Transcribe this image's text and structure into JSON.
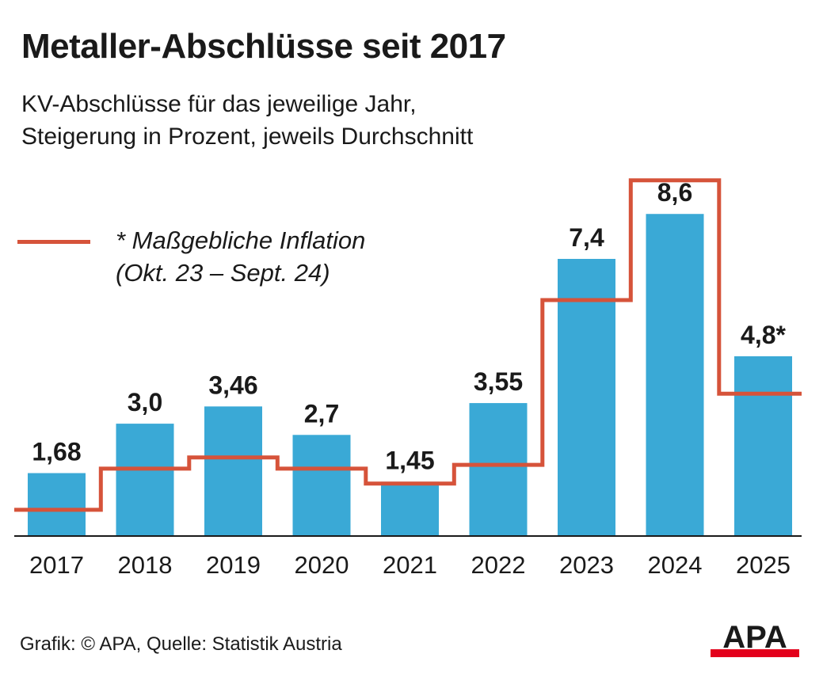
{
  "header": {
    "title": "Metaller-Abschlüsse seit 2017",
    "subtitle_line1": "KV-Abschlüsse für das jeweilige Jahr,",
    "subtitle_line2": "Steigerung in Prozent, jeweils Durchschnitt"
  },
  "legend": {
    "line1": "* Maßgebliche Inflation",
    "line2": "(Okt. 23 – Sept. 24)"
  },
  "footer": {
    "source": "Grafik: © APA, Quelle: Statistik Austria",
    "logo_text": "APA"
  },
  "colors": {
    "bar": "#3aa9d6",
    "inflation_line": "#d6533a",
    "logo_red": "#e3001b"
  },
  "chart_data": {
    "type": "bar",
    "title": "Metaller-Abschlüsse seit 2017",
    "subtitle": "KV-Abschlüsse für das jeweilige Jahr, Steigerung in Prozent, jeweils Durchschnitt",
    "categories": [
      "2017",
      "2018",
      "2019",
      "2020",
      "2021",
      "2022",
      "2023",
      "2024",
      "2025"
    ],
    "series": [
      {
        "values": [
          1.68,
          3.0,
          3.46,
          2.7,
          1.45,
          3.55,
          7.4,
          8.6,
          4.8
        ],
        "labels": [
          "1,68",
          "3,0",
          "3,46",
          "2,7",
          "1,45",
          "3,55",
          "7,4",
          "8,6",
          "4,8*"
        ]
      },
      {
        "name": "* Maßgebliche Inflation",
        "type": "step-line",
        "values": [
          0.7,
          1.8,
          2.1,
          1.8,
          1.4,
          1.9,
          6.3,
          9.5,
          3.8
        ]
      }
    ],
    "ylim": [
      0,
      9.5
    ],
    "grid": false,
    "legend_position": "top-left"
  }
}
